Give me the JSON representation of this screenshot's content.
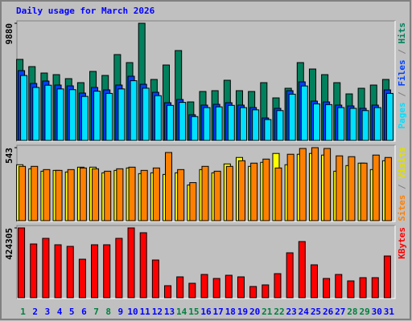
{
  "chart_data": [
    {
      "type": "bar",
      "title": "Daily usage for March 2026",
      "categories": [
        "1",
        "2",
        "3",
        "4",
        "5",
        "6",
        "7",
        "8",
        "9",
        "10",
        "11",
        "12",
        "13",
        "14",
        "15",
        "16",
        "17",
        "18",
        "19",
        "20",
        "21",
        "22",
        "23",
        "24",
        "25",
        "26",
        "27",
        "28",
        "29",
        "30",
        "31"
      ],
      "weekends": [
        0,
        6,
        7,
        13,
        14,
        20,
        21,
        27,
        28
      ],
      "weekend_color": "#008040",
      "weekday_color": "#0000ff",
      "legend_separator": " / ",
      "separator_color": "#808080",
      "ylim": [
        0,
        9880
      ],
      "yticks": [
        9880
      ],
      "series": [
        {
          "name": "Hits",
          "color": "#00805c",
          "values": [
            6835,
            6226,
            5684,
            5549,
            5211,
            4872,
            5820,
            5481,
            7241,
            6564,
            9880,
            5143,
            6361,
            7579,
            3248,
            4128,
            4196,
            5075,
            4196,
            4128,
            4872,
            3587,
            4399,
            6564,
            6023,
            5549,
            4872,
            3925,
            4399,
            4669,
            5143
          ]
        },
        {
          "name": "Files",
          "color": "#0040ff",
          "values": [
            5887,
            4805,
            5008,
            4669,
            4602,
            3993,
            4466,
            4263,
            4669,
            5414,
            4737,
            4060,
            3181,
            3451,
            2166,
            2977,
            3045,
            3181,
            2977,
            2775,
            1895,
            2707,
            4196,
            4940,
            3316,
            3248,
            2977,
            2910,
            2707,
            2977,
            4263
          ]
        },
        {
          "name": "Pages",
          "color": "#00e0ff",
          "values": [
            5475,
            4469,
            4657,
            4342,
            4280,
            3713,
            4153,
            3965,
            4342,
            5035,
            4405,
            3776,
            2958,
            3209,
            2014,
            2769,
            2832,
            2958,
            2769,
            2581,
            1762,
            2518,
            3902,
            4594,
            3084,
            3021,
            2769,
            2706,
            2518,
            2769,
            3965
          ]
        }
      ]
    },
    {
      "type": "bar",
      "legend_separator": " / ",
      "separator_color": "#808080",
      "ylim": [
        0,
        543
      ],
      "yticks": [
        543
      ],
      "series": [
        {
          "name": "Visits",
          "color": "#ffff00",
          "values": [
            416,
            386,
            368,
            374,
            362,
            398,
            398,
            356,
            374,
            392,
            350,
            356,
            344,
            356,
            265,
            380,
            356,
            422,
            470,
            404,
            434,
            500,
            416,
            494,
            500,
            488,
            368,
            410,
            428,
            380,
            446
          ]
        },
        {
          "name": "Sites",
          "color": "#ff8000",
          "values": [
            404,
            404,
            380,
            374,
            380,
            392,
            386,
            368,
            386,
            398,
            374,
            392,
            507,
            380,
            283,
            404,
            368,
            404,
            446,
            428,
            458,
            392,
            494,
            537,
            543,
            537,
            482,
            476,
            428,
            488,
            470
          ]
        }
      ]
    },
    {
      "type": "bar",
      "ylim": [
        0,
        424305
      ],
      "yticks": [
        424305
      ],
      "series": [
        {
          "name": "KBytes",
          "color": "#ff0000",
          "values": [
            424305,
            326759,
            360898,
            321882,
            312128,
            234096,
            321882,
            321882,
            360898,
            424305,
            395037,
            229219,
            73155,
            126802,
            87786,
            141433,
            117048,
            136556,
            126802,
            68278,
            78032,
            146310,
            273112,
            341390,
            199957,
            117048,
            141433,
            102417,
            121925,
            121925,
            253604
          ]
        }
      ]
    }
  ]
}
